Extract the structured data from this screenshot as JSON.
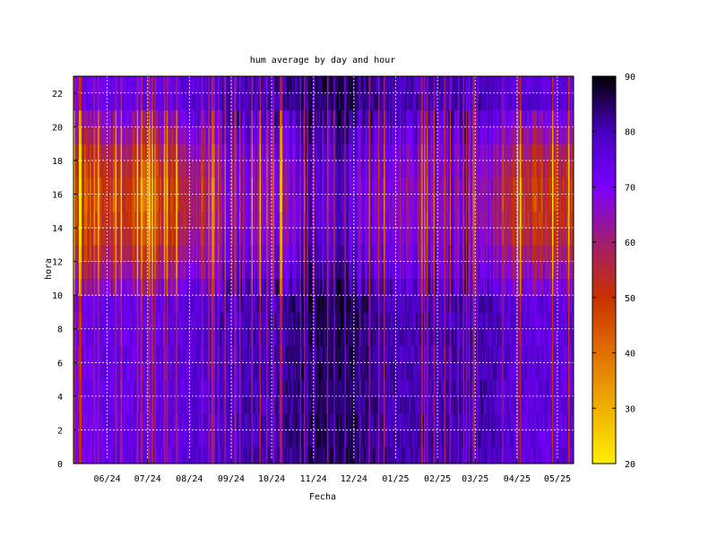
{
  "chart_data": {
    "type": "heatmap",
    "title": "hum average by day and hour",
    "xlabel": "Fecha",
    "ylabel": "hora",
    "x_ticks": [
      "06/24",
      "07/24",
      "08/24",
      "09/24",
      "10/24",
      "11/24",
      "12/24",
      "01/25",
      "02/25",
      "03/25",
      "04/25",
      "05/25"
    ],
    "x_range": [
      "2024-05-07",
      "2025-05-13"
    ],
    "y_ticks": [
      0,
      2,
      4,
      6,
      8,
      10,
      12,
      14,
      16,
      18,
      20,
      22
    ],
    "ylim": [
      0,
      23
    ],
    "colorbar": {
      "range": [
        20,
        90
      ],
      "ticks": [
        20,
        30,
        40,
        50,
        60,
        70,
        80,
        90
      ],
      "palette": "gnuplot (black-blue-violet-red-orange-yellow), reversed: 90=black, 20=yellow"
    },
    "grid": true,
    "legend": "none",
    "approx_daily_humidity": {
      "night_hours_0_to_9": "mostly 72-88, darkest (85-90) in Nov-Dec 2024; drops to 45-60 on scattered dry days",
      "day_hours_10_to_20": "35-60 in May-Aug 2024 and Apr-May 2025, 65-80 in Oct 2024-Mar 2025",
      "monthly_day_mean": [
        {
          "month": "05/24",
          "day": 42,
          "night": 70
        },
        {
          "month": "06/24",
          "day": 50,
          "night": 74
        },
        {
          "month": "07/24",
          "day": 45,
          "night": 73
        },
        {
          "month": "08/24",
          "day": 55,
          "night": 76
        },
        {
          "month": "09/24",
          "day": 68,
          "night": 80
        },
        {
          "month": "10/24",
          "day": 62,
          "night": 80
        },
        {
          "month": "11/24",
          "day": 78,
          "night": 86
        },
        {
          "month": "12/24",
          "day": 74,
          "night": 85
        },
        {
          "month": "01/25",
          "day": 65,
          "night": 80
        },
        {
          "month": "02/25",
          "day": 68,
          "night": 80
        },
        {
          "month": "03/25",
          "day": 72,
          "night": 82
        },
        {
          "month": "04/25",
          "day": 52,
          "night": 76
        },
        {
          "month": "05/25",
          "day": 50,
          "night": 75
        }
      ]
    }
  }
}
